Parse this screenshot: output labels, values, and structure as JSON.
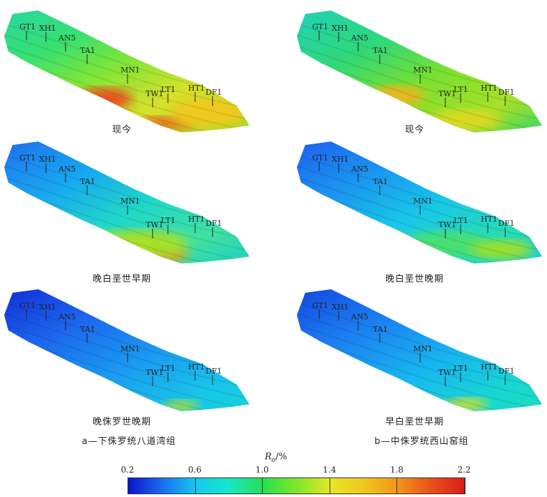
{
  "panels": [
    {
      "caption": "现今",
      "wells": [
        "GT1",
        "XH1",
        "AN5",
        "TA1",
        "MN1",
        "TW1",
        "LT1",
        "HT1",
        "DF1"
      ],
      "scheme": "present"
    },
    {
      "caption": "现今",
      "wells": [
        "GT1",
        "XH1",
        "AN5",
        "TA1",
        "MN1",
        "TW1",
        "LT1",
        "HT1",
        "DF1"
      ],
      "scheme": "present_b"
    },
    {
      "caption": "晚白垩世早期",
      "wells": [
        "GT1",
        "XH1",
        "AN5",
        "TA1",
        "MN1",
        "TW1",
        "LT1",
        "HT1",
        "DF1"
      ],
      "scheme": "late_k_early"
    },
    {
      "caption": "晚白垩世晚期",
      "wells": [
        "GT1",
        "XH1",
        "AN5",
        "TA1",
        "MN1",
        "TW1",
        "LT1",
        "HT1",
        "DF1"
      ],
      "scheme": "late_k_late"
    },
    {
      "caption": "晚侏罗世晚期",
      "wells": [
        "GT1",
        "XH1",
        "AN5",
        "TA1",
        "MN1",
        "TW1",
        "LT1",
        "HT1",
        "DF1"
      ],
      "scheme": "late_j_late"
    },
    {
      "caption": "早白垩世早期",
      "wells": [
        "GT1",
        "XH1",
        "AN5",
        "TA1",
        "MN1",
        "TW1",
        "LT1",
        "HT1",
        "DF1"
      ],
      "scheme": "early_k_early"
    }
  ],
  "column_captions": {
    "a": "a—下侏罗统八道湾组",
    "b": "b—中侏罗统西山窑组"
  },
  "legend": {
    "title_symbol": "R",
    "title_sub": "o",
    "title_unit": "/%",
    "ticks": [
      "0.2",
      "0.6",
      "1.0",
      "1.4",
      "1.8",
      "2.2"
    ],
    "colors": [
      "#0a14c8",
      "#16c8f0",
      "#28e050",
      "#e6e628",
      "#f09618",
      "#d81e18"
    ]
  }
}
